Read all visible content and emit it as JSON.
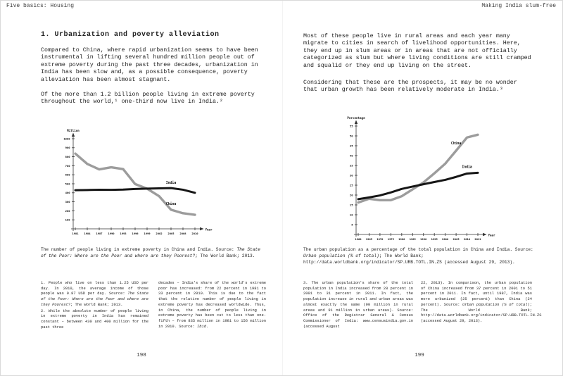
{
  "book": {
    "header_left": "Five basics: Housing",
    "header_right": "Making India slum-free",
    "left_page_number": "198",
    "right_page_number": "199"
  },
  "left_page": {
    "heading": "1. Urbanization and poverty alleviation",
    "para1": "Compared to China, where rapid urbanization seems to have been instrumental in lifting several hundred million people out of extreme poverty during the past three decades, urbanization in India has been slow and, as a possible consequence, poverty alleviation has been almost stagnant.",
    "para2": "Of the more than 1.2 billion people living in extreme poverty throughout the world,¹ one-third now live in India.²",
    "caption_parts": [
      {
        "t": "The number of people living in extreme poverty in China and India. Source: ",
        "i": false
      },
      {
        "t": "The State of the Poor: Where are the Poor and where are they Poorest?",
        "i": true
      },
      {
        "t": "; The World Bank; 2013.",
        "i": false
      }
    ],
    "footnote1_parts": [
      {
        "t": "1. People who live on less than 1.25 USD per day. In 2010, the average income of those people was 0.87 USD per day. Source: ",
        "i": false
      },
      {
        "t": "The State of the Poor: Where are the Poor and where are they Poorest?",
        "i": true
      },
      {
        "t": "; The World Bank; 2013.",
        "i": false
      }
    ],
    "footnote2a": "2. While the absolute number of people living in extreme poverty in India has remained constant – between 430 and 400 million for the past three",
    "footnote2b_parts": [
      {
        "t": "decades – India's share of the world's extreme poor has increased: from 22 percent in 1981 to 33 percent in 2010. This is due to the fact that the relative number of people living in extreme poverty has decreased worldwide. Thus, in China, the number of people living in extreme poverty has been cut to less than one-fifth – from 835 million in 1981 to 156 million in 2010. Source: ",
        "i": false
      },
      {
        "t": "Ibid.",
        "i": true
      }
    ]
  },
  "right_page": {
    "para1": "Most of these people live in rural areas and each year many migrate to cities in search of livelihood opportunities. Here, they end up in slum areas or in areas that are not officially categorized as slum but where living conditions are still cramped and squalid or they end up living on the street.",
    "para2": "Considering that these are the prospects, it may be no wonder that urban growth has been relatively moderate in India.³",
    "caption_parts": [
      {
        "t": "The urban population as a percentage of the total population in China and India. Source: ",
        "i": false
      },
      {
        "t": "Urban population (% of total)",
        "i": true
      },
      {
        "t": "; The World Bank; http://data.worldbank.org/indicator/SP.URB.TOTL.IN.ZS (accessed August 29, 2013).",
        "i": false
      }
    ],
    "footnote3a": "3. The urban population's share of the total population in India increased from 28 percent in 2001 to 31 percent in 2011. In fact, the population increase in rural and urban areas was almost exactly the same (90 million in rural areas and 91 million in urban areas). Source: Office of the Registrar General & Census Commissioner of India: www.censusindia.gov.in (accessed August",
    "footnote3b_parts": [
      {
        "t": "22, 2013). In comparison, the urban population of China increased from 37 percent in 2001 to 51 percent in 2011. In fact, until 1987, India was more urbanized (25 percent) than China (24 percent). Source: ",
        "i": false
      },
      {
        "t": "Urban population (% of total)",
        "i": true
      },
      {
        "t": "; The World Bank; http://data.worldbank.org/indicator/SP.URB.TOTL.IN.ZS (accessed August 29, 2013).",
        "i": false
      }
    ]
  },
  "chart_data": [
    {
      "type": "line",
      "title": "The number of people living in extreme poverty in China and India",
      "xlabel": "Year",
      "ylabel": "Million",
      "x": [
        1981,
        1984,
        1987,
        1990,
        1993,
        1996,
        1999,
        2002,
        2005,
        2008,
        2010
      ],
      "ylim": [
        0,
        1000
      ],
      "ytick_step": 100,
      "grid": false,
      "legend": "inline-labels",
      "series": [
        {
          "name": "China",
          "color": "#9c9c9c",
          "stroke_width": 3.4,
          "values": [
            835,
            720,
            660,
            683,
            663,
            497,
            446,
            363,
            212,
            173,
            156
          ],
          "label_index": 8,
          "label_dy": -7
        },
        {
          "name": "India",
          "color": "#161616",
          "stroke_width": 3.0,
          "values": [
            429,
            431,
            434,
            433,
            436,
            442,
            446,
            449,
            452,
            434,
            400
          ],
          "label_index": 8,
          "label_dy": -6
        }
      ]
    },
    {
      "type": "line",
      "title": "The urban population as a percentage of the total population in China and India",
      "xlabel": "Year",
      "ylabel": "Percentage",
      "x": [
        1960,
        1965,
        1970,
        1975,
        1980,
        1985,
        1990,
        1995,
        2000,
        2005,
        2010,
        2011
      ],
      "ylim": [
        0,
        55
      ],
      "ytick_step": 5,
      "grid": false,
      "legend": "inline-labels",
      "series": [
        {
          "name": "China",
          "color": "#9c9c9c",
          "stroke_width": 3.4,
          "values": [
            16.2,
            18.1,
            17.4,
            17.4,
            19.4,
            22.9,
            26.4,
            31.0,
            35.9,
            42.5,
            49.2,
            50.6
          ],
          "label_index": 9,
          "label_dy": -9
        },
        {
          "name": "India",
          "color": "#161616",
          "stroke_width": 3.0,
          "values": [
            17.9,
            18.8,
            19.8,
            21.3,
            23.1,
            24.3,
            25.5,
            26.6,
            27.7,
            29.2,
            30.9,
            31.3
          ],
          "label_index": 10,
          "label_dy": -8
        }
      ]
    }
  ],
  "colors": {
    "china_line": "#9c9c9c",
    "india_line": "#161616",
    "text": "#222222",
    "page": "#ffffff"
  }
}
